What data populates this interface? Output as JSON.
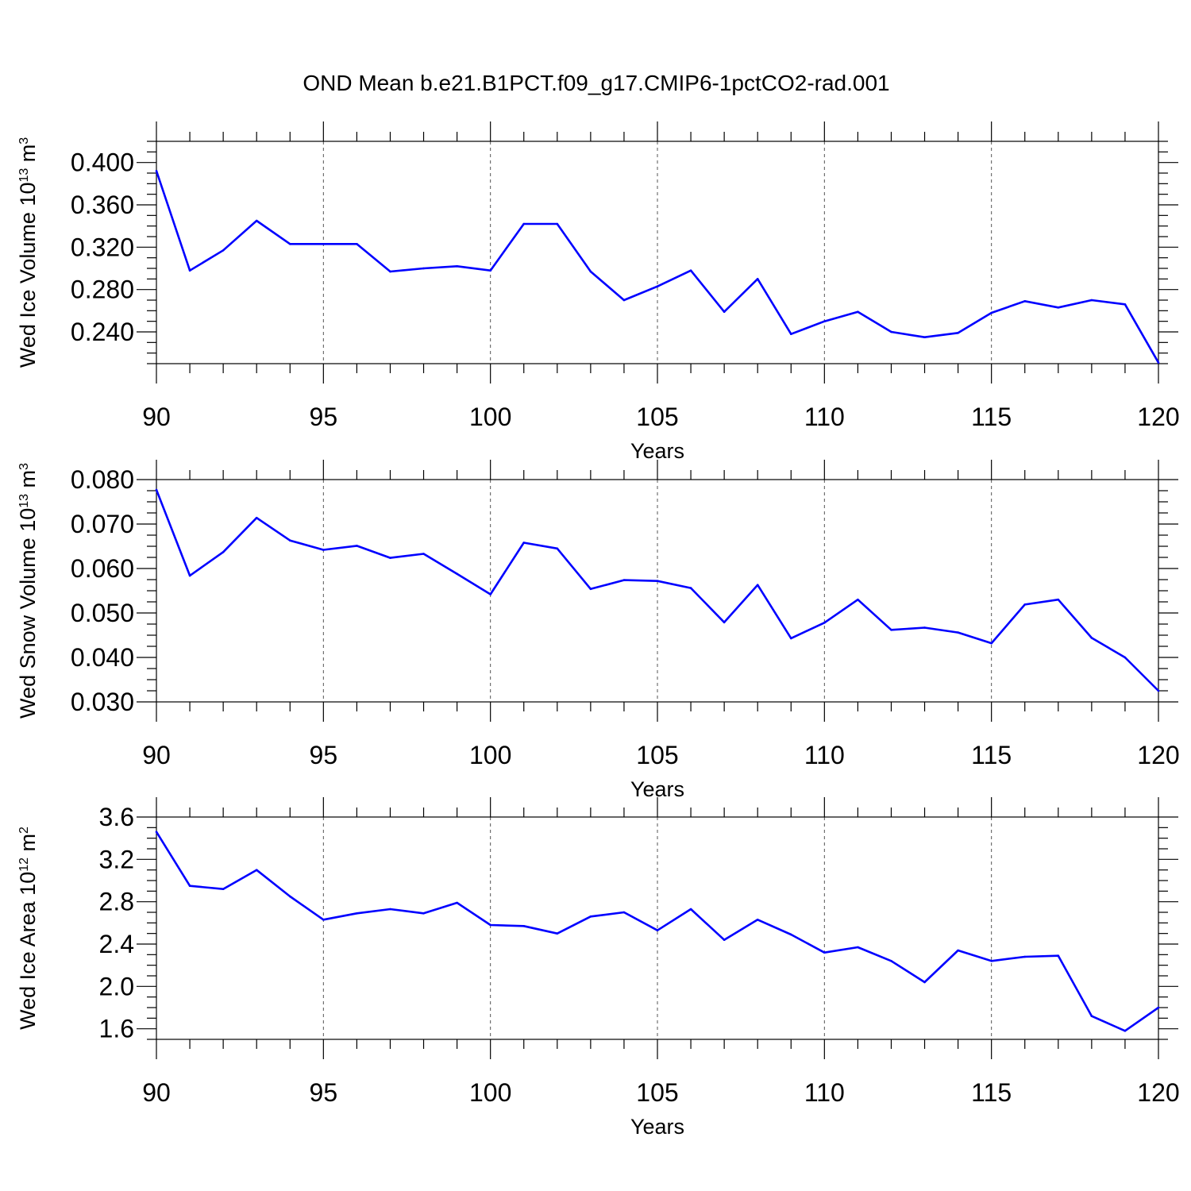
{
  "title": "OND Mean b.e21.B1PCT.f09_g17.CMIP6-1pctCO2-rad.001",
  "series_color": "#0000ff",
  "chart_data": [
    {
      "type": "line",
      "ylabel": {
        "prefix": "Wed Ice Volume 10",
        "exponent": "13",
        "unit": " m",
        "unit_exponent": "3"
      },
      "xlabel": "Years",
      "xlim": [
        90,
        120
      ],
      "ylim": [
        0.21,
        0.42
      ],
      "xticks": [
        90,
        95,
        100,
        105,
        110,
        115,
        120
      ],
      "xtick_labels": [
        "90",
        "95",
        "100",
        "105",
        "110",
        "115",
        "120"
      ],
      "yticks": [
        0.24,
        0.28,
        0.32,
        0.36,
        0.4
      ],
      "ytick_labels": [
        "0.240",
        "0.280",
        "0.320",
        "0.360",
        "0.400"
      ],
      "grid": "vertical dashed at major x ticks",
      "x": [
        90,
        91,
        92,
        93,
        94,
        95,
        96,
        97,
        98,
        99,
        100,
        101,
        102,
        103,
        104,
        105,
        106,
        107,
        108,
        109,
        110,
        111,
        112,
        113,
        114,
        115,
        116,
        117,
        118,
        119,
        120
      ],
      "values": [
        0.392,
        0.298,
        0.317,
        0.345,
        0.323,
        0.323,
        0.323,
        0.297,
        0.3,
        0.302,
        0.298,
        0.342,
        0.342,
        0.297,
        0.27,
        0.283,
        0.298,
        0.259,
        0.29,
        0.238,
        0.25,
        0.259,
        0.24,
        0.235,
        0.239,
        0.258,
        0.269,
        0.263,
        0.27,
        0.266,
        0.211
      ]
    },
    {
      "type": "line",
      "ylabel": {
        "prefix": "Wed Snow Volume 10",
        "exponent": "13",
        "unit": " m",
        "unit_exponent": "3"
      },
      "xlabel": "Years",
      "xlim": [
        90,
        120
      ],
      "ylim": [
        0.03,
        0.08
      ],
      "xticks": [
        90,
        95,
        100,
        105,
        110,
        115,
        120
      ],
      "xtick_labels": [
        "90",
        "95",
        "100",
        "105",
        "110",
        "115",
        "120"
      ],
      "yticks": [
        0.03,
        0.04,
        0.05,
        0.06,
        0.07,
        0.08
      ],
      "ytick_labels": [
        "0.030",
        "0.040",
        "0.050",
        "0.060",
        "0.070",
        "0.080"
      ],
      "grid": "vertical dashed at major x ticks",
      "x": [
        90,
        91,
        92,
        93,
        94,
        95,
        96,
        97,
        98,
        99,
        100,
        101,
        102,
        103,
        104,
        105,
        106,
        107,
        108,
        109,
        110,
        111,
        112,
        113,
        114,
        115,
        116,
        117,
        118,
        119,
        120
      ],
      "values": [
        0.0777,
        0.0584,
        0.0637,
        0.0714,
        0.0663,
        0.0642,
        0.0651,
        0.0624,
        0.0633,
        0.0588,
        0.0542,
        0.0658,
        0.0645,
        0.0554,
        0.0574,
        0.0572,
        0.0556,
        0.0479,
        0.0563,
        0.0443,
        0.0478,
        0.053,
        0.0462,
        0.0467,
        0.0456,
        0.0432,
        0.0519,
        0.053,
        0.0444,
        0.04,
        0.0325
      ]
    },
    {
      "type": "line",
      "ylabel": {
        "prefix": "Wed Ice Area 10",
        "exponent": "12",
        "unit": " m",
        "unit_exponent": "2"
      },
      "xlabel": "Years",
      "xlim": [
        90,
        120
      ],
      "ylim": [
        1.5,
        3.6
      ],
      "xticks": [
        90,
        95,
        100,
        105,
        110,
        115,
        120
      ],
      "xtick_labels": [
        "90",
        "95",
        "100",
        "105",
        "110",
        "115",
        "120"
      ],
      "yticks": [
        1.6,
        2.0,
        2.4,
        2.8,
        3.2,
        3.6
      ],
      "ytick_labels": [
        "1.6",
        "2.0",
        "2.4",
        "2.8",
        "3.2",
        "3.6"
      ],
      "grid": "vertical dashed at major x ticks",
      "x": [
        90,
        91,
        92,
        93,
        94,
        95,
        96,
        97,
        98,
        99,
        100,
        101,
        102,
        103,
        104,
        105,
        106,
        107,
        108,
        109,
        110,
        111,
        112,
        113,
        114,
        115,
        116,
        117,
        118,
        119,
        120
      ],
      "values": [
        3.46,
        2.95,
        2.92,
        3.1,
        2.85,
        2.63,
        2.69,
        2.73,
        2.69,
        2.79,
        2.58,
        2.57,
        2.5,
        2.66,
        2.7,
        2.53,
        2.73,
        2.44,
        2.63,
        2.49,
        2.32,
        2.37,
        2.24,
        2.04,
        2.34,
        2.24,
        2.28,
        2.29,
        1.72,
        1.58,
        1.8
      ]
    }
  ]
}
